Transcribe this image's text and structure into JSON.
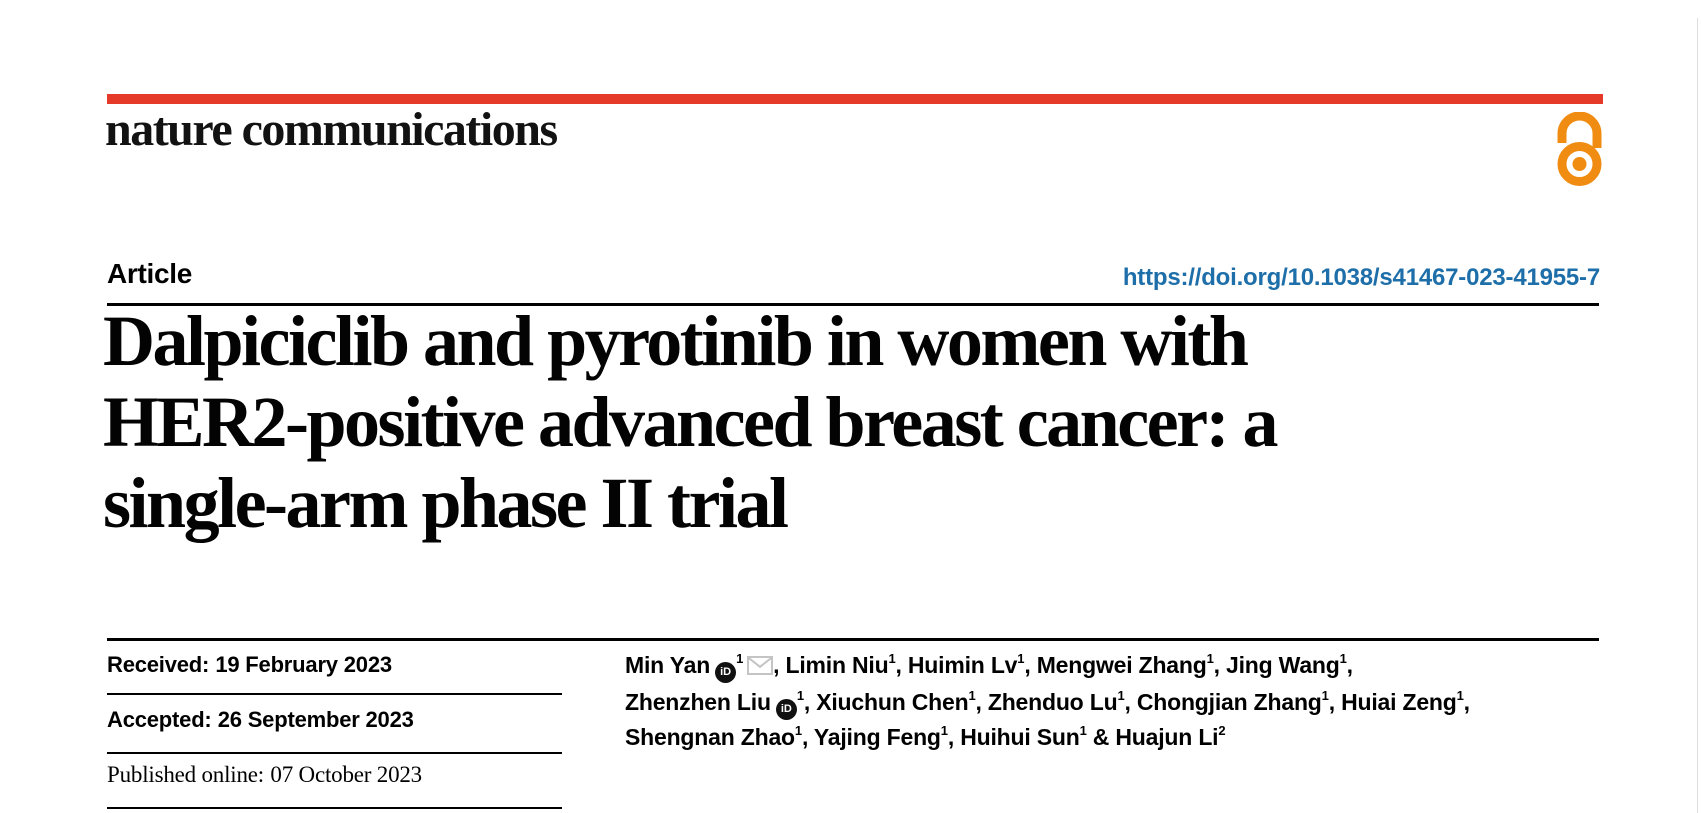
{
  "colors": {
    "brand_red": "#e5392a",
    "open_access_orange": "#f08c12",
    "doi_blue": "#1e6fa9",
    "envelope_gray": "#c4c4c4"
  },
  "masthead": {
    "journal_name": "nature communications",
    "open_access_icon": "open-access-lock-icon"
  },
  "article_header": {
    "label": "Article",
    "doi": "https://doi.org/10.1038/s41467-023-41955-7"
  },
  "title_lines": [
    "Dalpiciclib and pyrotinib in women with",
    "HER2-positive advanced breast cancer: a",
    "single-arm phase II trial"
  ],
  "dates": [
    {
      "label": "Received:",
      "value": "19 February 2023"
    },
    {
      "label": "Accepted:",
      "value": "26 September 2023"
    },
    {
      "label": "Published online:",
      "value": "07 October 2023"
    }
  ],
  "icons": {
    "orcid_text": "iD"
  },
  "authors": {
    "lines": [
      [
        {
          "t": "Min Yan"
        },
        {
          "icon": "orcid"
        },
        {
          "sup": "1"
        },
        {
          "icon": "email"
        },
        {
          "t": ", Limin Niu"
        },
        {
          "sup": "1"
        },
        {
          "t": ", Huimin Lv"
        },
        {
          "sup": "1"
        },
        {
          "t": ", Mengwei Zhang"
        },
        {
          "sup": "1"
        },
        {
          "t": ", Jing Wang"
        },
        {
          "sup": "1"
        },
        {
          "t": ","
        }
      ],
      [
        {
          "t": "Zhenzhen Liu"
        },
        {
          "icon": "orcid"
        },
        {
          "sup": "1"
        },
        {
          "t": ", Xiuchun Chen"
        },
        {
          "sup": "1"
        },
        {
          "t": ", Zhenduo Lu"
        },
        {
          "sup": "1"
        },
        {
          "t": ", Chongjian Zhang"
        },
        {
          "sup": "1"
        },
        {
          "t": ", Huiai Zeng"
        },
        {
          "sup": "1"
        },
        {
          "t": ","
        }
      ],
      [
        {
          "t": "Shengnan Zhao"
        },
        {
          "sup": "1"
        },
        {
          "t": ", Yajing Feng"
        },
        {
          "sup": "1"
        },
        {
          "t": ", Huihui Sun"
        },
        {
          "sup": "1"
        },
        {
          "t": " & Huajun Li"
        },
        {
          "sup": "2"
        }
      ]
    ]
  }
}
